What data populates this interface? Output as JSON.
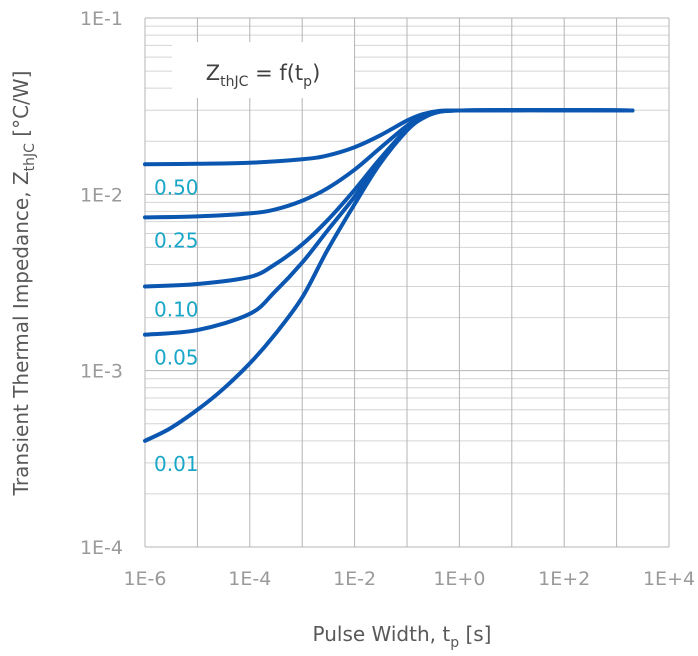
{
  "chart_data": {
    "type": "line",
    "title": "",
    "annotation": {
      "main": "Z",
      "sub": "thJC",
      "eq": " = f(t",
      "sub2": "p",
      "close": ")"
    },
    "xlabel": {
      "main": "Pulse Width, t",
      "sub": "p",
      "unit": " [s]"
    },
    "ylabel": {
      "main": "Transient Thermal Impedance, Z",
      "sub": "thJC",
      "unit": " [°C/W]"
    },
    "x_scale": "log",
    "y_scale": "log",
    "xlim": [
      1e-06,
      10000
    ],
    "ylim": [
      0.0001,
      0.1
    ],
    "x_ticks": [
      {
        "value": 1e-06,
        "label": "1E-6"
      },
      {
        "value": 0.0001,
        "label": "1E-4"
      },
      {
        "value": 0.01,
        "label": "1E-2"
      },
      {
        "value": 1,
        "label": "1E+0"
      },
      {
        "value": 100,
        "label": "1E+2"
      },
      {
        "value": 10000,
        "label": "1E+4"
      }
    ],
    "y_ticks": [
      {
        "value": 0.0001,
        "label": "1E-4"
      },
      {
        "value": 0.001,
        "label": "1E-3"
      },
      {
        "value": 0.01,
        "label": "1E-2"
      },
      {
        "value": 0.1,
        "label": "1E-1"
      }
    ],
    "grid": true,
    "line_color": "#0a56b0",
    "label_color": "#1aa6c8",
    "series": [
      {
        "name": "0.50",
        "x": [
          1e-06,
          1e-05,
          0.0001,
          0.001,
          0.003,
          0.01,
          0.03,
          0.1,
          0.2,
          0.4,
          1,
          10,
          100,
          2000
        ],
        "y": [
          0.0148,
          0.0149,
          0.0151,
          0.0158,
          0.0166,
          0.0185,
          0.0215,
          0.0262,
          0.0285,
          0.0297,
          0.0299,
          0.03,
          0.03,
          0.0299
        ]
      },
      {
        "name": "0.25",
        "x": [
          1e-06,
          1e-05,
          0.0001,
          0.0003,
          0.001,
          0.003,
          0.01,
          0.03,
          0.1,
          0.2,
          0.4,
          1,
          10,
          100,
          2000
        ],
        "y": [
          0.0074,
          0.0075,
          0.0078,
          0.0082,
          0.0092,
          0.0108,
          0.0138,
          0.0182,
          0.0245,
          0.0278,
          0.0295,
          0.0299,
          0.03,
          0.03,
          0.0299
        ]
      },
      {
        "name": "0.10",
        "x": [
          1e-06,
          1e-05,
          0.0001,
          0.0003,
          0.001,
          0.003,
          0.01,
          0.03,
          0.1,
          0.2,
          0.4,
          1,
          10,
          100,
          2000
        ],
        "y": [
          0.003,
          0.0031,
          0.0034,
          0.004,
          0.0052,
          0.0071,
          0.0106,
          0.0158,
          0.0235,
          0.0274,
          0.0294,
          0.0299,
          0.03,
          0.03,
          0.0299
        ]
      },
      {
        "name": "0.05",
        "x": [
          1e-06,
          1e-05,
          0.0001,
          0.0003,
          0.001,
          0.003,
          0.01,
          0.03,
          0.1,
          0.2,
          0.4,
          1,
          10,
          100,
          2000
        ],
        "y": [
          0.0016,
          0.0017,
          0.0021,
          0.0028,
          0.0041,
          0.0062,
          0.0097,
          0.0153,
          0.0232,
          0.0272,
          0.0294,
          0.0299,
          0.03,
          0.03,
          0.0299
        ]
      },
      {
        "name": "0.01",
        "x": [
          1e-06,
          3e-06,
          1e-05,
          3e-05,
          0.0001,
          0.0003,
          0.001,
          0.003,
          0.01,
          0.03,
          0.1,
          0.2,
          0.4,
          1,
          10,
          100,
          2000
        ],
        "y": [
          0.0004,
          0.00047,
          0.0006,
          0.00078,
          0.0011,
          0.0016,
          0.0026,
          0.0048,
          0.0088,
          0.0148,
          0.023,
          0.027,
          0.0293,
          0.0299,
          0.03,
          0.03,
          0.0299
        ]
      }
    ]
  }
}
